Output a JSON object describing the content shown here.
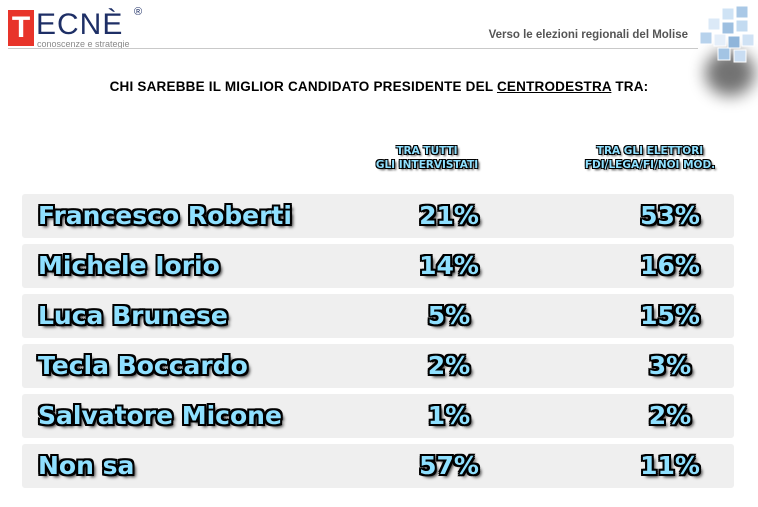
{
  "header": {
    "logo_letter": "T",
    "logo_rest": "ECNÈ",
    "logo_registered": "®",
    "logo_tagline": "conoscenze e strategie",
    "subtitle": "Verso le elezioni regionali del Molise"
  },
  "question": {
    "before": "CHI SAREBBE IL MIGLIOR CANDIDATO PRESIDENTE DEL ",
    "underlined": "CENTRODESTRA",
    "after": " TRA:"
  },
  "chart_data": {
    "type": "table",
    "unit": "%",
    "columns": [
      {
        "line1": "TRA TUTTI",
        "line2": "GLI INTERVISTATI"
      },
      {
        "line1": "TRA GLI ELETTORI",
        "line2": "FDI/LEGA/FI/NOI MOD."
      }
    ],
    "rows": [
      {
        "name": "Francesco Roberti",
        "values": [
          "21%",
          "53%"
        ]
      },
      {
        "name": "Michele Iorio",
        "values": [
          "14%",
          "16%"
        ]
      },
      {
        "name": "Luca Brunese",
        "values": [
          "5%",
          "15%"
        ]
      },
      {
        "name": "Tecla Boccardo",
        "values": [
          "2%",
          "3%"
        ]
      },
      {
        "name": "Salvatore Micone",
        "values": [
          "1%",
          "2%"
        ]
      },
      {
        "name": "Non sa",
        "values": [
          "57%",
          "11%"
        ]
      }
    ]
  },
  "colors": {
    "value_text": "#8fe0ff",
    "row_bg": "#efefef",
    "logo_red": "#e8342a",
    "logo_blue": "#1e2f66"
  }
}
